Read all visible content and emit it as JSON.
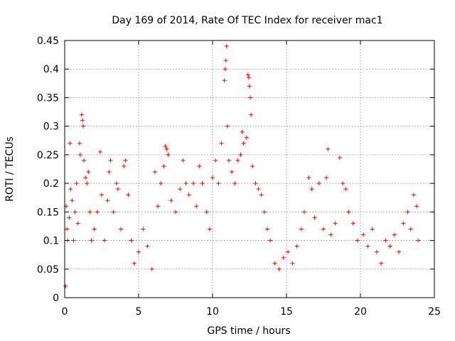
{
  "chart_data": {
    "type": "scatter",
    "title": "Day 169 of 2014, Rate Of TEC Index for receiver mac1",
    "xlabel": "GPS time / hours",
    "ylabel": "ROTI / TECUs",
    "xlim": [
      0,
      25
    ],
    "ylim": [
      0,
      0.45
    ],
    "xticks": [
      0,
      5,
      10,
      15,
      20,
      25
    ],
    "xtick_labels": [
      "0",
      "5",
      "10",
      "15",
      "20",
      "25"
    ],
    "yticks": [
      0,
      0.05,
      0.1,
      0.15,
      0.2,
      0.25,
      0.3,
      0.35,
      0.4,
      0.45
    ],
    "ytick_labels": [
      "0",
      "0.05",
      "0.1",
      "0.15",
      "0.2",
      "0.25",
      "0.3",
      "0.35",
      "0.4",
      "0.45"
    ],
    "grid": true,
    "marker": "+",
    "series_color": "#ff0000",
    "series": [
      {
        "points": [
          [
            0.05,
            0.02
          ],
          [
            0.1,
            0.16
          ],
          [
            0.15,
            0.12
          ],
          [
            0.2,
            0.1
          ],
          [
            0.3,
            0.14
          ],
          [
            0.35,
            0.27
          ],
          [
            0.4,
            0.19
          ],
          [
            0.5,
            0.17
          ],
          [
            0.6,
            0.1
          ],
          [
            0.7,
            0.15
          ],
          [
            0.8,
            0.2
          ],
          [
            0.9,
            0.13
          ],
          [
            1.0,
            0.27
          ],
          [
            1.05,
            0.25
          ],
          [
            1.15,
            0.32
          ],
          [
            1.2,
            0.31
          ],
          [
            1.25,
            0.3
          ],
          [
            1.3,
            0.24
          ],
          [
            1.4,
            0.21
          ],
          [
            1.5,
            0.2
          ],
          [
            1.6,
            0.22
          ],
          [
            1.7,
            0.15
          ],
          [
            1.8,
            0.1
          ],
          [
            2.0,
            0.12
          ],
          [
            2.2,
            0.15
          ],
          [
            2.4,
            0.255
          ],
          [
            2.5,
            0.18
          ],
          [
            2.7,
            0.1
          ],
          [
            2.9,
            0.17
          ],
          [
            3.0,
            0.22
          ],
          [
            3.1,
            0.24
          ],
          [
            3.3,
            0.15
          ],
          [
            3.5,
            0.2
          ],
          [
            3.6,
            0.19
          ],
          [
            3.8,
            0.12
          ],
          [
            4.0,
            0.23
          ],
          [
            4.1,
            0.24
          ],
          [
            4.3,
            0.18
          ],
          [
            4.5,
            0.1
          ],
          [
            4.7,
            0.06
          ],
          [
            5.0,
            0.08
          ],
          [
            5.3,
            0.12
          ],
          [
            5.6,
            0.09
          ],
          [
            5.9,
            0.05
          ],
          [
            6.1,
            0.22
          ],
          [
            6.3,
            0.16
          ],
          [
            6.5,
            0.2
          ],
          [
            6.7,
            0.23
          ],
          [
            6.8,
            0.265
          ],
          [
            6.9,
            0.26
          ],
          [
            7.0,
            0.25
          ],
          [
            7.2,
            0.17
          ],
          [
            7.5,
            0.15
          ],
          [
            7.8,
            0.19
          ],
          [
            8.0,
            0.24
          ],
          [
            8.2,
            0.2
          ],
          [
            8.4,
            0.18
          ],
          [
            8.7,
            0.2
          ],
          [
            8.9,
            0.16
          ],
          [
            9.1,
            0.23
          ],
          [
            9.3,
            0.2
          ],
          [
            9.6,
            0.15
          ],
          [
            9.8,
            0.12
          ],
          [
            10.0,
            0.21
          ],
          [
            10.2,
            0.24
          ],
          [
            10.4,
            0.2
          ],
          [
            10.6,
            0.27
          ],
          [
            10.8,
            0.38
          ],
          [
            10.85,
            0.4
          ],
          [
            10.9,
            0.415
          ],
          [
            10.95,
            0.44
          ],
          [
            11.0,
            0.3
          ],
          [
            11.1,
            0.24
          ],
          [
            11.3,
            0.22
          ],
          [
            11.5,
            0.2
          ],
          [
            11.7,
            0.24
          ],
          [
            11.9,
            0.25
          ],
          [
            12.0,
            0.29
          ],
          [
            12.1,
            0.27
          ],
          [
            12.3,
            0.28
          ],
          [
            12.4,
            0.39
          ],
          [
            12.45,
            0.385
          ],
          [
            12.5,
            0.37
          ],
          [
            12.55,
            0.35
          ],
          [
            12.6,
            0.32
          ],
          [
            12.7,
            0.23
          ],
          [
            12.9,
            0.2
          ],
          [
            13.1,
            0.19
          ],
          [
            13.3,
            0.18
          ],
          [
            13.5,
            0.15
          ],
          [
            13.7,
            0.12
          ],
          [
            13.9,
            0.1
          ],
          [
            14.2,
            0.06
          ],
          [
            14.5,
            0.05
          ],
          [
            14.8,
            0.07
          ],
          [
            15.1,
            0.08
          ],
          [
            15.4,
            0.06
          ],
          [
            15.7,
            0.09
          ],
          [
            16.0,
            0.12
          ],
          [
            16.2,
            0.15
          ],
          [
            16.5,
            0.21
          ],
          [
            16.7,
            0.19
          ],
          [
            16.9,
            0.14
          ],
          [
            17.2,
            0.2
          ],
          [
            17.5,
            0.12
          ],
          [
            17.7,
            0.21
          ],
          [
            17.8,
            0.26
          ],
          [
            18.0,
            0.11
          ],
          [
            18.3,
            0.13
          ],
          [
            18.6,
            0.245
          ],
          [
            18.8,
            0.2
          ],
          [
            19.0,
            0.19
          ],
          [
            19.2,
            0.15
          ],
          [
            19.5,
            0.13
          ],
          [
            19.8,
            0.1
          ],
          [
            20.2,
            0.11
          ],
          [
            20.5,
            0.09
          ],
          [
            20.8,
            0.12
          ],
          [
            21.1,
            0.08
          ],
          [
            21.4,
            0.06
          ],
          [
            21.7,
            0.1
          ],
          [
            22.0,
            0.09
          ],
          [
            22.3,
            0.11
          ],
          [
            22.6,
            0.08
          ],
          [
            22.9,
            0.13
          ],
          [
            23.2,
            0.15
          ],
          [
            23.4,
            0.12
          ],
          [
            23.6,
            0.18
          ],
          [
            23.8,
            0.16
          ],
          [
            23.9,
            0.1
          ]
        ]
      }
    ]
  }
}
